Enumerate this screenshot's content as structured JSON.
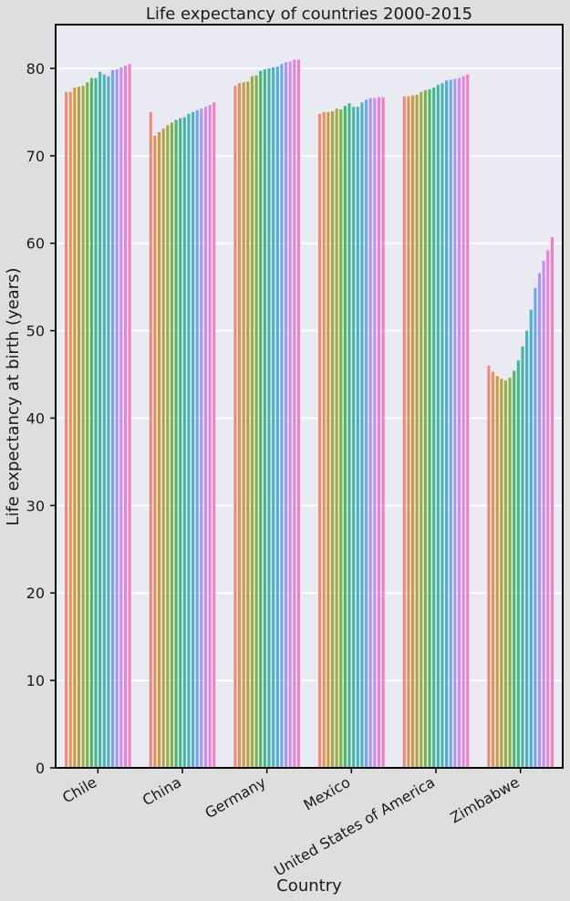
{
  "chart_data": {
    "type": "bar",
    "title": "Life expectancy of countries 2000-2015",
    "xlabel": "Country",
    "ylabel": "Life expectancy at birth (years)",
    "ylim": [
      0,
      85
    ],
    "yticks": [
      0,
      10,
      20,
      30,
      40,
      50,
      60,
      70,
      80
    ],
    "grid": true,
    "legend": "none",
    "categories": [
      "Chile",
      "China",
      "Germany",
      "Mexico",
      "United States of America",
      "Zimbabwe"
    ],
    "series_colors": [
      "#f0897d",
      "#e99152",
      "#c79c45",
      "#b0a347",
      "#9eaa46",
      "#7cb346",
      "#4db66b",
      "#45b78f",
      "#47b5a6",
      "#48b3bd",
      "#4eaed4",
      "#72a6ee",
      "#a898f3",
      "#cf8cf0",
      "#e982db",
      "#f27fbe"
    ],
    "series": [
      {
        "values": [
          77.3,
          75.0,
          78.0,
          74.8,
          76.8,
          46.0
        ]
      },
      {
        "values": [
          77.3,
          72.3,
          78.3,
          75.0,
          76.8,
          45.3
        ]
      },
      {
        "values": [
          77.8,
          72.7,
          78.4,
          75.0,
          76.9,
          44.8
        ]
      },
      {
        "values": [
          77.9,
          73.1,
          78.5,
          75.1,
          77.0,
          44.5
        ]
      },
      {
        "values": [
          78.0,
          73.5,
          79.1,
          75.4,
          77.3,
          44.3
        ]
      },
      {
        "values": [
          78.4,
          73.8,
          79.2,
          75.3,
          77.5,
          44.6
        ]
      },
      {
        "values": [
          78.9,
          74.1,
          79.7,
          75.7,
          77.6,
          45.4
        ]
      },
      {
        "values": [
          78.9,
          74.3,
          79.9,
          76.0,
          77.8,
          46.6
        ]
      },
      {
        "values": [
          79.6,
          74.4,
          80.0,
          75.6,
          78.1,
          48.2
        ]
      },
      {
        "values": [
          79.3,
          74.8,
          80.1,
          75.6,
          78.3,
          50.0
        ]
      },
      {
        "values": [
          79.1,
          75.0,
          80.2,
          76.1,
          78.6,
          52.4
        ]
      },
      {
        "values": [
          79.8,
          75.2,
          80.5,
          76.4,
          78.7,
          54.9
        ]
      },
      {
        "values": [
          79.9,
          75.4,
          80.7,
          76.6,
          78.8,
          56.6
        ]
      },
      {
        "values": [
          80.1,
          75.6,
          80.8,
          76.6,
          78.9,
          58.0
        ]
      },
      {
        "values": [
          80.3,
          75.8,
          81.0,
          76.7,
          79.1,
          59.2
        ]
      },
      {
        "values": [
          80.5,
          76.1,
          81.0,
          76.7,
          79.3,
          60.7
        ]
      }
    ]
  }
}
